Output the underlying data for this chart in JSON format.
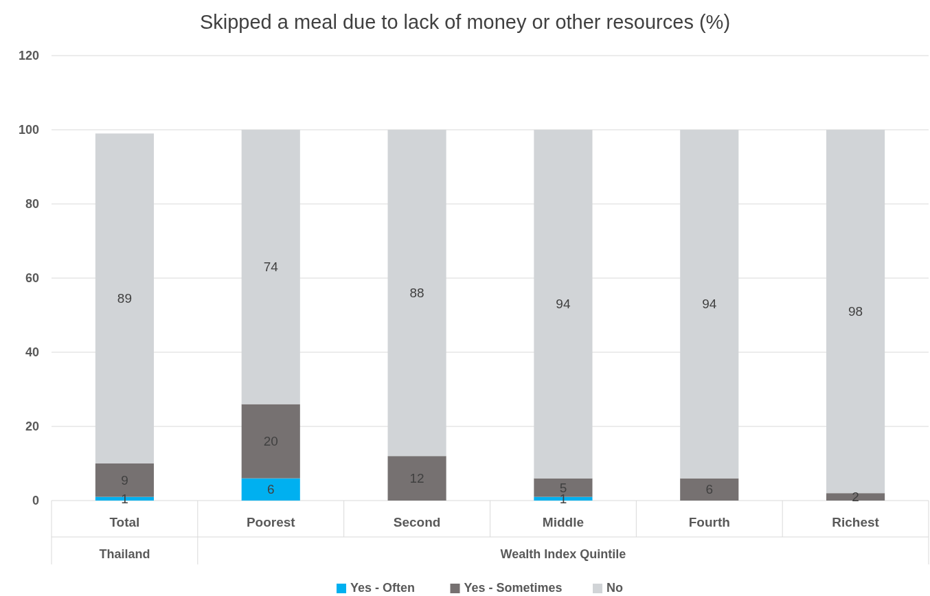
{
  "chart_data": {
    "type": "bar",
    "title": "Skipped a meal due to lack of money or other resources (%)",
    "categories": [
      "Total",
      "Poorest",
      "Second",
      "Middle",
      "Fourth",
      "Richest"
    ],
    "series": [
      {
        "name": "Yes - Often",
        "color": "#00b0f0",
        "values": [
          1,
          6,
          null,
          1,
          null,
          null
        ]
      },
      {
        "name": "Yes - Sometimes",
        "color": "#767171",
        "values": [
          9,
          20,
          12,
          5,
          6,
          2
        ]
      },
      {
        "name": "No",
        "color": "#d1d4d7",
        "values": [
          89,
          74,
          88,
          94,
          94,
          98
        ]
      }
    ],
    "stacked": true,
    "ylim": [
      0,
      120
    ],
    "yticks": [
      0,
      20,
      40,
      60,
      80,
      100,
      120
    ],
    "grid": "y",
    "legend": "bottom",
    "data_labels": true,
    "annotations": [
      "Thailand",
      "Wealth Index Quintile"
    ]
  }
}
